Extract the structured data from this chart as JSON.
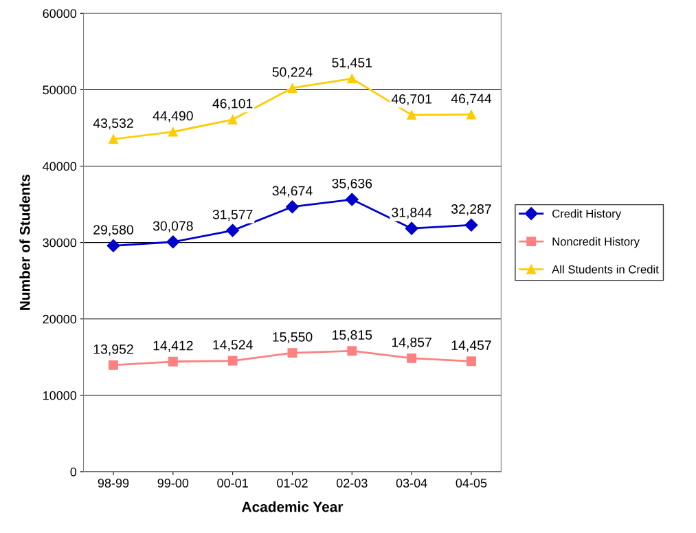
{
  "chart_data": {
    "type": "line",
    "xlabel": "Academic Year",
    "ylabel": "Number of Students",
    "categories": [
      "98-99",
      "99-00",
      "00-01",
      "01-02",
      "02-03",
      "03-04",
      "04-05"
    ],
    "series": [
      {
        "name": "Credit History",
        "color": "#0000cc",
        "marker": "diamond",
        "values": [
          29580,
          30078,
          31577,
          34674,
          35636,
          31844,
          32287
        ],
        "value_labels": [
          "29,580",
          "30,078",
          "31,577",
          "34,674",
          "35,636",
          "31,844",
          "32,287"
        ]
      },
      {
        "name": "Noncredit History",
        "color": "#ff8080",
        "marker": "square",
        "values": [
          13952,
          14412,
          14524,
          15550,
          15815,
          14857,
          14457
        ],
        "value_labels": [
          "13,952",
          "14,412",
          "14,524",
          "15,550",
          "15,815",
          "14,857",
          "14,457"
        ]
      },
      {
        "name": "All Students in Credit",
        "color": "#ffcc00",
        "marker": "triangle",
        "values": [
          43532,
          44490,
          46101,
          50224,
          51451,
          46701,
          46744
        ],
        "value_labels": [
          "43,532",
          "44,490",
          "46,101",
          "50,224",
          "51,451",
          "46,701",
          "46,744"
        ]
      }
    ],
    "ylim": [
      0,
      60000
    ],
    "yticks": [
      0,
      10000,
      20000,
      30000,
      40000,
      50000,
      60000
    ],
    "grid": "y",
    "legend": "right",
    "line_style": "solid"
  }
}
